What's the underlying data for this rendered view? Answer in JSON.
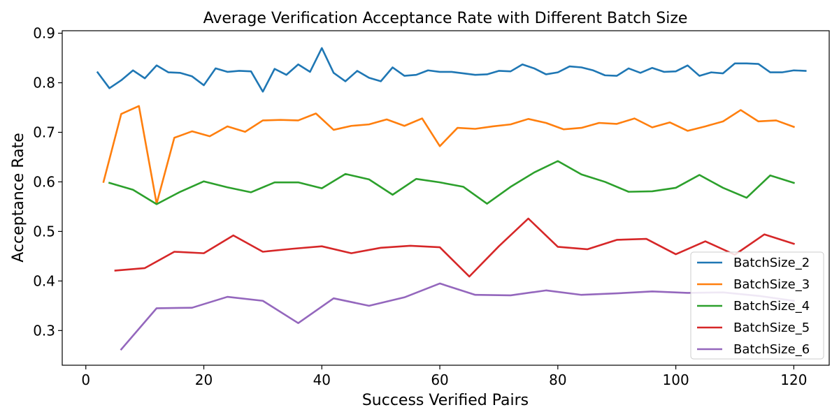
{
  "chart_data": {
    "type": "line",
    "title": "Average Verification Acceptance Rate with Different Batch Size",
    "xlabel": "Success Verified Pairs",
    "ylabel": "Acceptance Rate",
    "xlim": [
      -4,
      126
    ],
    "ylim": [
      0.23,
      0.905
    ],
    "xticks": [
      0,
      20,
      40,
      60,
      80,
      100,
      120
    ],
    "yticks": [
      0.3,
      0.4,
      0.5,
      0.6,
      0.7,
      0.8,
      0.9
    ],
    "xtick_labels": [
      "0",
      "20",
      "40",
      "60",
      "80",
      "100",
      "120"
    ],
    "ytick_labels": [
      "0.3",
      "0.4",
      "0.5",
      "0.6",
      "0.7",
      "0.8",
      "0.9"
    ],
    "grid": false,
    "legend_position": "lower-right",
    "series": [
      {
        "name": "BatchSize_2",
        "color": "#1f77b4",
        "x": [
          2,
          4,
          6,
          8,
          10,
          12,
          14,
          16,
          18,
          20,
          22,
          24,
          26,
          28,
          30,
          32,
          34,
          36,
          38,
          40,
          42,
          44,
          46,
          48,
          50,
          52,
          54,
          56,
          58,
          60,
          62,
          64,
          66,
          68,
          70,
          72,
          74,
          76,
          78,
          80,
          82,
          84,
          86,
          88,
          90,
          92,
          94,
          96,
          98,
          100,
          102,
          104,
          106,
          108,
          110,
          112,
          114,
          116,
          118,
          120,
          122
        ],
        "y": [
          0.821,
          0.789,
          0.805,
          0.825,
          0.809,
          0.835,
          0.821,
          0.82,
          0.813,
          0.795,
          0.829,
          0.822,
          0.824,
          0.823,
          0.782,
          0.828,
          0.816,
          0.837,
          0.822,
          0.87,
          0.82,
          0.803,
          0.824,
          0.81,
          0.803,
          0.831,
          0.814,
          0.816,
          0.825,
          0.822,
          0.822,
          0.819,
          0.816,
          0.817,
          0.824,
          0.823,
          0.837,
          0.829,
          0.817,
          0.821,
          0.833,
          0.831,
          0.825,
          0.815,
          0.814,
          0.829,
          0.82,
          0.83,
          0.822,
          0.823,
          0.835,
          0.814,
          0.821,
          0.819,
          0.839,
          0.839,
          0.838,
          0.821,
          0.821,
          0.825,
          0.824
        ]
      },
      {
        "name": "BatchSize_3",
        "color": "#ff7f0e",
        "x": [
          3,
          6,
          9,
          12,
          15,
          18,
          21,
          24,
          27,
          30,
          33,
          36,
          39,
          42,
          45,
          48,
          51,
          54,
          57,
          60,
          63,
          66,
          69,
          72,
          75,
          78,
          81,
          84,
          87,
          90,
          93,
          96,
          99,
          102,
          105,
          108,
          111,
          114,
          117,
          120
        ],
        "y": [
          0.6,
          0.737,
          0.753,
          0.556,
          0.689,
          0.702,
          0.692,
          0.712,
          0.701,
          0.724,
          0.725,
          0.724,
          0.738,
          0.705,
          0.713,
          0.716,
          0.726,
          0.713,
          0.728,
          0.672,
          0.709,
          0.707,
          0.712,
          0.716,
          0.727,
          0.719,
          0.706,
          0.709,
          0.719,
          0.717,
          0.728,
          0.71,
          0.72,
          0.703,
          0.712,
          0.722,
          0.745,
          0.722,
          0.724,
          0.711
        ]
      },
      {
        "name": "BatchSize_4",
        "color": "#2ca02c",
        "x": [
          4,
          8,
          12,
          16,
          20,
          24,
          28,
          32,
          36,
          40,
          44,
          48,
          52,
          56,
          60,
          64,
          68,
          72,
          76,
          80,
          84,
          88,
          92,
          96,
          100,
          104,
          108,
          112,
          116,
          120
        ],
        "y": [
          0.598,
          0.584,
          0.555,
          0.58,
          0.601,
          0.589,
          0.579,
          0.599,
          0.599,
          0.587,
          0.616,
          0.605,
          0.574,
          0.606,
          0.599,
          0.59,
          0.556,
          0.59,
          0.619,
          0.642,
          0.615,
          0.6,
          0.58,
          0.581,
          0.588,
          0.614,
          0.588,
          0.568,
          0.613,
          0.598
        ]
      },
      {
        "name": "BatchSize_5",
        "color": "#d62728",
        "x": [
          5,
          10,
          15,
          20,
          25,
          30,
          35,
          40,
          45,
          50,
          55,
          60,
          65,
          70,
          75,
          80,
          85,
          90,
          95,
          100,
          105,
          110,
          115,
          120
        ],
        "y": [
          0.421,
          0.426,
          0.459,
          0.456,
          0.492,
          0.459,
          0.465,
          0.47,
          0.456,
          0.467,
          0.471,
          0.468,
          0.409,
          0.47,
          0.526,
          0.469,
          0.464,
          0.483,
          0.485,
          0.454,
          0.48,
          0.453,
          0.494,
          0.475
        ]
      },
      {
        "name": "BatchSize_6",
        "color": "#9467bd",
        "x": [
          6,
          12,
          18,
          24,
          30,
          36,
          42,
          48,
          54,
          60,
          66,
          72,
          78,
          84,
          90,
          96,
          102,
          108,
          114,
          120
        ],
        "y": [
          0.262,
          0.345,
          0.346,
          0.368,
          0.36,
          0.315,
          0.365,
          0.35,
          0.367,
          0.395,
          0.372,
          0.371,
          0.381,
          0.372,
          0.375,
          0.379,
          0.376,
          0.377,
          0.37,
          0.36
        ]
      }
    ]
  }
}
